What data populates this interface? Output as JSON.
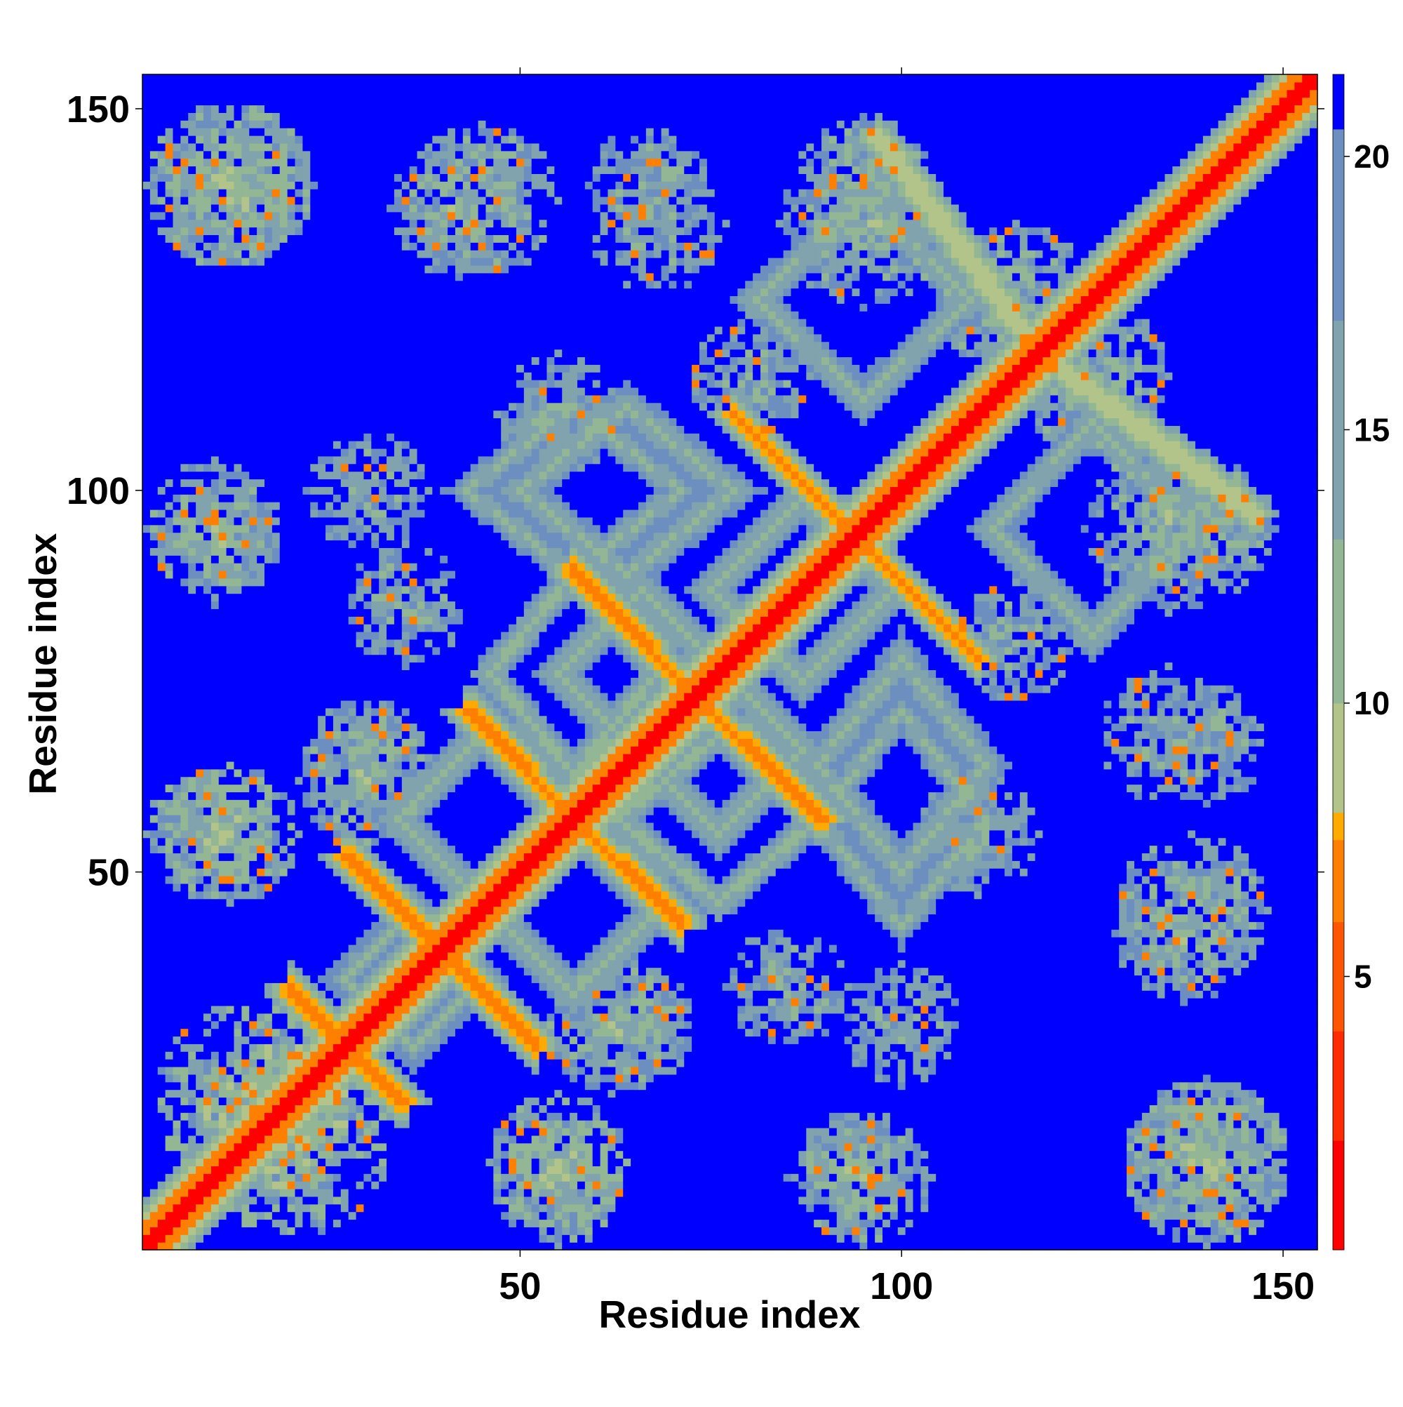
{
  "chart_data": {
    "type": "heatmap",
    "title": "",
    "xlabel": "Residue index",
    "ylabel": "Residue index",
    "xlim": [
      1,
      154
    ],
    "ylim": [
      1,
      154
    ],
    "x_ticks": [
      50,
      100,
      150
    ],
    "y_ticks": [
      50,
      100,
      150
    ],
    "colorbar": {
      "range": [
        0,
        21.5
      ],
      "ticks": [
        5,
        10,
        15,
        20
      ],
      "colors": [
        "#ff0000",
        "#ff2a00",
        "#ff5500",
        "#ff8000",
        "#ffaa00",
        "#b2c48a",
        "#93b694",
        "#80a3ae",
        "#6c8fc0",
        "#0000ff"
      ],
      "boundaries": [
        0,
        2,
        4,
        6,
        7.5,
        8,
        10,
        13,
        17,
        20.5,
        21.5
      ]
    },
    "diagonal_value": 1,
    "background_value": 21,
    "contact_bands": [
      {
        "x0": 78,
        "y0": 110,
        "x1": 110,
        "y1": 78,
        "value": 7
      },
      {
        "x0": 57,
        "y0": 89,
        "x1": 71,
        "y1": 75,
        "value": 7
      },
      {
        "x0": 44,
        "y0": 71,
        "x1": 57,
        "y1": 57,
        "value": 7
      },
      {
        "x0": 57,
        "y0": 57,
        "x1": 71,
        "y1": 43,
        "value": 7
      },
      {
        "x0": 80,
        "y0": 67,
        "x1": 90,
        "y1": 57,
        "value": 7
      },
      {
        "x0": 27,
        "y0": 52,
        "x1": 52,
        "y1": 28,
        "value": 7
      },
      {
        "x0": 20,
        "y0": 34,
        "x1": 35,
        "y1": 20,
        "value": 7
      },
      {
        "x0": 97,
        "y0": 146,
        "x1": 118,
        "y1": 118,
        "value": 8
      },
      {
        "x0": 118,
        "y0": 118,
        "x1": 146,
        "y1": 97,
        "value": 8
      }
    ],
    "contact_clusters": [
      {
        "x": 12,
        "y": 140,
        "radius": 11,
        "value": 12
      },
      {
        "x": 45,
        "y": 138,
        "radius": 10,
        "value": 13
      },
      {
        "x": 68,
        "y": 135,
        "radius": 9,
        "value": 14
      },
      {
        "x": 95,
        "y": 135,
        "radius": 11,
        "value": 13
      },
      {
        "x": 10,
        "y": 93,
        "radius": 8,
        "value": 13
      },
      {
        "x": 10,
        "y": 55,
        "radius": 9,
        "value": 12
      },
      {
        "x": 30,
        "y": 62,
        "radius": 9,
        "value": 13
      },
      {
        "x": 35,
        "y": 85,
        "radius": 8,
        "value": 14
      },
      {
        "x": 20,
        "y": 15,
        "radius": 13,
        "value": 11
      },
      {
        "x": 55,
        "y": 12,
        "radius": 9,
        "value": 12
      },
      {
        "x": 95,
        "y": 10,
        "radius": 9,
        "value": 13
      },
      {
        "x": 140,
        "y": 12,
        "radius": 11,
        "value": 12
      },
      {
        "x": 137,
        "y": 42,
        "radius": 9,
        "value": 13
      },
      {
        "x": 140,
        "y": 67,
        "radius": 8,
        "value": 14
      },
      {
        "x": 140,
        "y": 95,
        "radius": 9,
        "value": 13
      },
      {
        "x": 100,
        "y": 30,
        "radius": 8,
        "value": 14
      },
      {
        "x": 65,
        "y": 30,
        "radius": 8,
        "value": 13
      },
      {
        "x": 125,
        "y": 115,
        "radius": 10,
        "value": 13
      },
      {
        "x": 80,
        "y": 115,
        "radius": 8,
        "value": 14
      },
      {
        "x": 55,
        "y": 110,
        "radius": 8,
        "value": 14
      }
    ],
    "contact_rings": [
      {
        "cx": 66,
        "cy": 76,
        "rx": 11,
        "ry": 11,
        "value": 11
      },
      {
        "cx": 87,
        "cy": 87,
        "rx": 12,
        "ry": 12,
        "value": 11
      },
      {
        "cx": 76,
        "cy": 57,
        "rx": 13,
        "ry": 11,
        "value": 11
      },
      {
        "cx": 45,
        "cy": 57,
        "rx": 11,
        "ry": 11,
        "value": 11
      },
      {
        "cx": 100,
        "cy": 64,
        "rx": 11,
        "ry": 14,
        "value": 12
      },
      {
        "cx": 57,
        "cy": 100,
        "rx": 14,
        "ry": 11,
        "value": 12
      },
      {
        "cx": 125,
        "cy": 95,
        "rx": 13,
        "ry": 14,
        "value": 12
      },
      {
        "cx": 95,
        "cy": 125,
        "rx": 14,
        "ry": 13,
        "value": 12
      },
      {
        "cx": 36,
        "cy": 36,
        "rx": 9,
        "ry": 9,
        "value": 12
      }
    ]
  }
}
